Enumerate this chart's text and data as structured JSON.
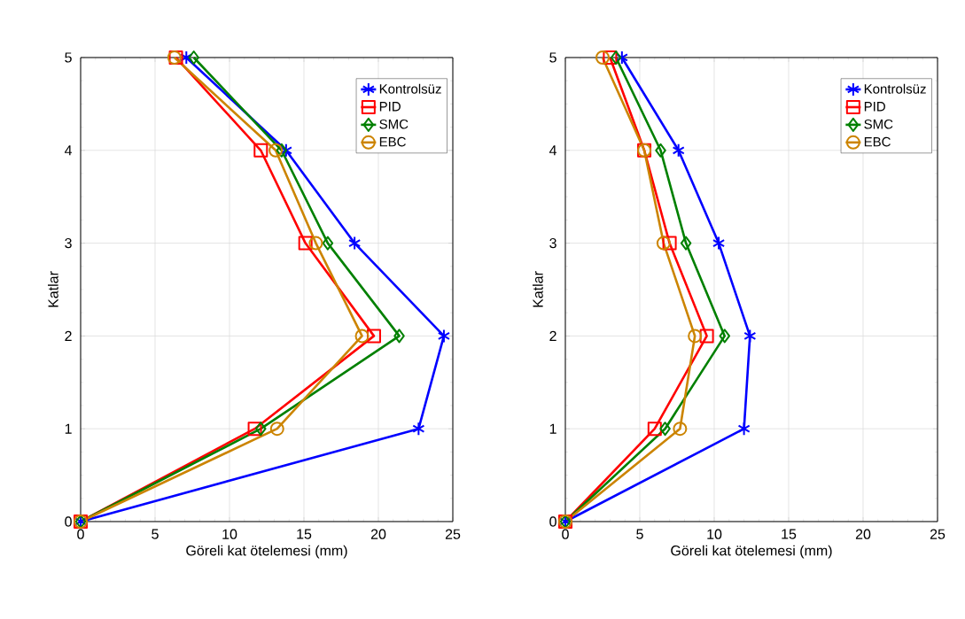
{
  "chart_data": [
    {
      "type": "line",
      "xlabel": "Göreli kat ötelemesi (mm)",
      "ylabel": "Katlar",
      "xlim": [
        0,
        25
      ],
      "ylim": [
        0,
        5
      ],
      "xticks": [
        0,
        5,
        10,
        15,
        20,
        25
      ],
      "yticks": [
        0,
        1,
        2,
        3,
        4,
        5
      ],
      "grid": true,
      "legend": "top right",
      "line_style": "solid",
      "series": [
        {
          "name": "Kontrolsüz",
          "color": "#0000ff",
          "marker": "cross",
          "x": [
            0,
            22.7,
            24.4,
            18.4,
            13.8,
            7.1
          ],
          "values": [
            0,
            1,
            2,
            3,
            4,
            5
          ]
        },
        {
          "name": "PID",
          "color": "#ff0000",
          "marker": "square",
          "x": [
            0,
            11.7,
            19.7,
            15.1,
            12.1,
            6.4
          ],
          "values": [
            0,
            1,
            2,
            3,
            4,
            5
          ]
        },
        {
          "name": "SMC",
          "color": "#008000",
          "marker": "diamond",
          "x": [
            0,
            12.1,
            21.4,
            16.6,
            13.5,
            7.6
          ],
          "values": [
            0,
            1,
            2,
            3,
            4,
            5
          ]
        },
        {
          "name": "EBC",
          "color": "#cc8400",
          "marker": "circle",
          "x": [
            0,
            13.2,
            18.9,
            15.8,
            13.1,
            6.3
          ],
          "values": [
            0,
            1,
            2,
            3,
            4,
            5
          ]
        }
      ]
    },
    {
      "type": "line",
      "xlabel": "Göreli kat ötelemesi (mm)",
      "ylabel": "Katlar",
      "xlim": [
        0,
        25
      ],
      "ylim": [
        0,
        5
      ],
      "xticks": [
        0,
        5,
        10,
        15,
        20,
        25
      ],
      "yticks": [
        0,
        1,
        2,
        3,
        4,
        5
      ],
      "grid": true,
      "legend": "top right",
      "line_style": "solid",
      "series": [
        {
          "name": "Kontrolsüz",
          "color": "#0000ff",
          "marker": "cross",
          "x": [
            0,
            12.0,
            12.4,
            10.3,
            7.6,
            3.8
          ],
          "values": [
            0,
            1,
            2,
            3,
            4,
            5
          ]
        },
        {
          "name": "PID",
          "color": "#ff0000",
          "marker": "square",
          "x": [
            0,
            6.0,
            9.5,
            7.0,
            5.3,
            3.0
          ],
          "values": [
            0,
            1,
            2,
            3,
            4,
            5
          ]
        },
        {
          "name": "SMC",
          "color": "#008000",
          "marker": "diamond",
          "x": [
            0,
            6.7,
            10.7,
            8.1,
            6.4,
            3.4
          ],
          "values": [
            0,
            1,
            2,
            3,
            4,
            5
          ]
        },
        {
          "name": "EBC",
          "color": "#cc8400",
          "marker": "circle",
          "x": [
            0,
            7.7,
            8.7,
            6.6,
            5.3,
            2.5
          ],
          "values": [
            0,
            1,
            2,
            3,
            4,
            5
          ]
        }
      ]
    }
  ]
}
